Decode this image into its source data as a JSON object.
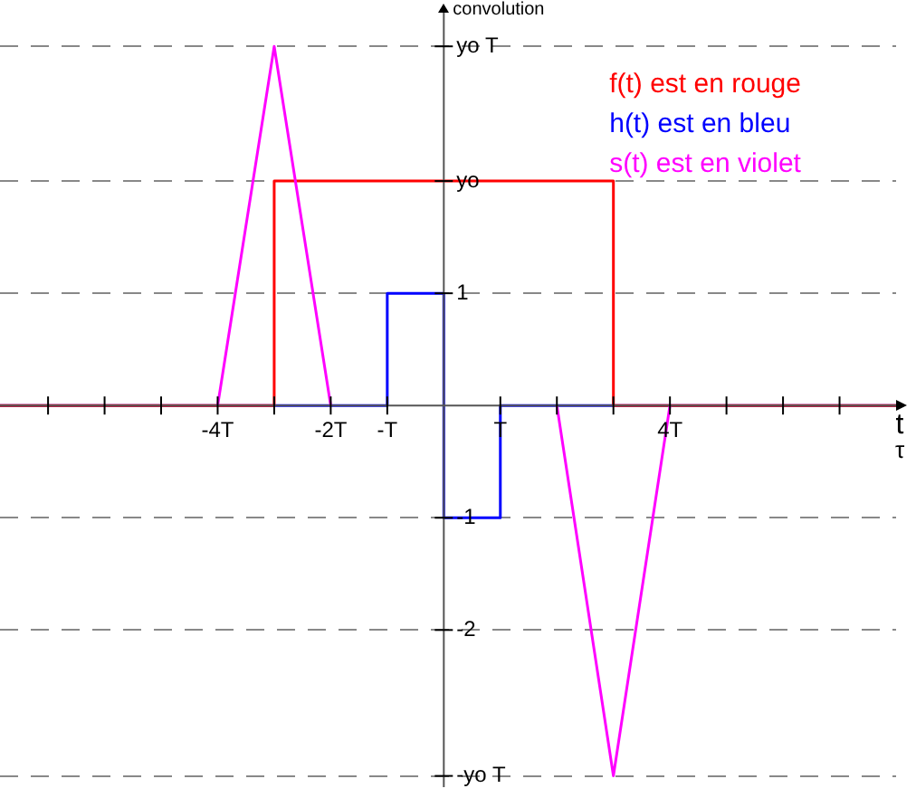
{
  "chart_data": {
    "type": "line",
    "ylabel": "convolution",
    "xlabel": "t",
    "annotations": [
      "τ"
    ],
    "xlim": [
      -7.85,
      8
    ],
    "ylim": [
      -3.4,
      3.5
    ],
    "xticks": [
      {
        "value": -7,
        "label": null
      },
      {
        "value": -6,
        "label": null
      },
      {
        "value": -5,
        "label": null
      },
      {
        "value": -4,
        "label": "-4T"
      },
      {
        "value": -3,
        "label": null
      },
      {
        "value": -2,
        "label": "-2T"
      },
      {
        "value": -1,
        "label": "-T"
      },
      {
        "value": 1,
        "label": "T"
      },
      {
        "value": 2,
        "label": null
      },
      {
        "value": 3,
        "label": null
      },
      {
        "value": 4,
        "label": "4T"
      },
      {
        "value": 5,
        "label": null
      },
      {
        "value": 6,
        "label": null
      },
      {
        "value": 7,
        "label": null
      }
    ],
    "yticks": [
      {
        "value": -3.3,
        "label": "-yo T"
      },
      -2,
      -1,
      1,
      {
        "value": 2,
        "label": "yo"
      },
      {
        "value": 3.2,
        "label": "yo T"
      }
    ],
    "grid": "y",
    "legend": "top right",
    "marker": "none",
    "line_style": "solid",
    "series": [
      {
        "name": "f(t) est en rouge",
        "color": "#ff0000",
        "x": [
          -7.85,
          -3,
          -3,
          3,
          3,
          8
        ],
        "values": [
          0,
          0,
          2,
          2,
          0,
          0
        ]
      },
      {
        "name": "h(t) est en bleu",
        "color": "#0000ff",
        "x": [
          -7.85,
          -1,
          -1,
          0,
          0,
          1,
          1,
          8
        ],
        "values": [
          0,
          0,
          1,
          1,
          -1,
          -1,
          0,
          0
        ]
      },
      {
        "name": "s(t) est en violet",
        "color": "#ff00ff",
        "x": [
          -4,
          -3,
          -2,
          0,
          2,
          3,
          4
        ],
        "values": [
          0,
          3.2,
          0,
          null,
          0,
          -3.3,
          0
        ]
      }
    ]
  }
}
